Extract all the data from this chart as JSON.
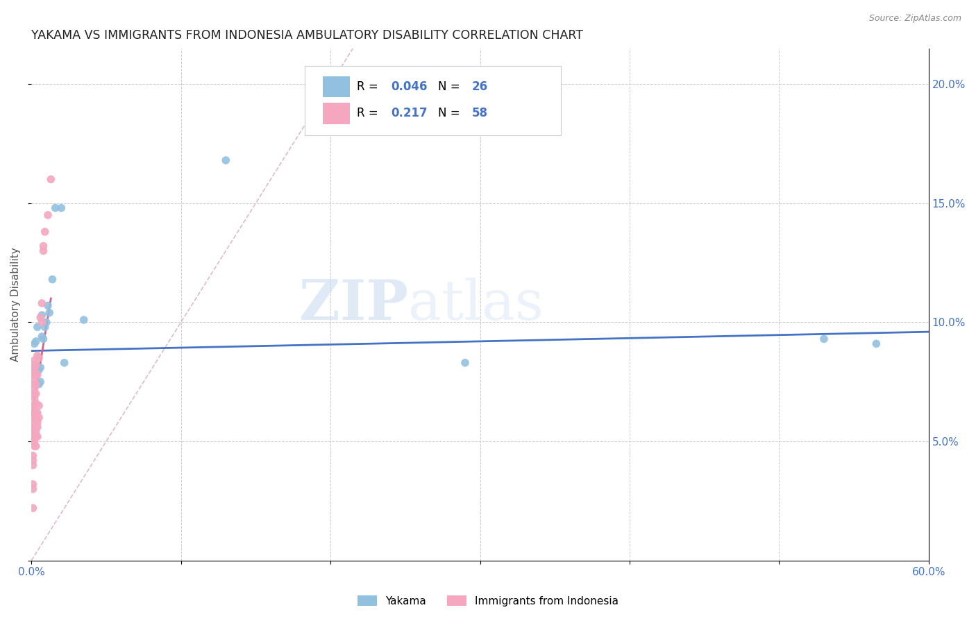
{
  "title": "YAKAMA VS IMMIGRANTS FROM INDONESIA AMBULATORY DISABILITY CORRELATION CHART",
  "source": "Source: ZipAtlas.com",
  "ylabel": "Ambulatory Disability",
  "xlim": [
    0.0,
    0.6
  ],
  "ylim": [
    0.0,
    0.215
  ],
  "xtick_positions": [
    0.0,
    0.1,
    0.2,
    0.3,
    0.4,
    0.5,
    0.6
  ],
  "xticklabels": [
    "0.0%",
    "",
    "",
    "",
    "",
    "",
    "60.0%"
  ],
  "ytick_positions": [
    0.0,
    0.05,
    0.1,
    0.15,
    0.2
  ],
  "yticklabels": [
    "",
    "5.0%",
    "10.0%",
    "15.0%",
    "20.0%"
  ],
  "color_blue": "#92c0e0",
  "color_pink": "#f4a7be",
  "color_blue_line": "#4472c4",
  "color_pink_line": "#d9608a",
  "color_blue_text": "#4472c4",
  "watermark_text": "ZIPatlas",
  "background_color": "#ffffff",
  "grid_color": "#cccccc",
  "blue_scatter_x": [
    0.002,
    0.002,
    0.003,
    0.003,
    0.004,
    0.004,
    0.005,
    0.005,
    0.006,
    0.006,
    0.007,
    0.007,
    0.008,
    0.009,
    0.01,
    0.011,
    0.012,
    0.014,
    0.016,
    0.02,
    0.022,
    0.035,
    0.13,
    0.29,
    0.53,
    0.565
  ],
  "blue_scatter_y": [
    0.08,
    0.091,
    0.082,
    0.092,
    0.08,
    0.098,
    0.074,
    0.08,
    0.075,
    0.081,
    0.094,
    0.103,
    0.093,
    0.098,
    0.1,
    0.107,
    0.104,
    0.118,
    0.148,
    0.148,
    0.083,
    0.101,
    0.168,
    0.083,
    0.093,
    0.091
  ],
  "pink_scatter_x": [
    0.001,
    0.001,
    0.001,
    0.001,
    0.001,
    0.001,
    0.001,
    0.001,
    0.001,
    0.001,
    0.001,
    0.001,
    0.002,
    0.002,
    0.002,
    0.002,
    0.002,
    0.002,
    0.002,
    0.002,
    0.002,
    0.002,
    0.002,
    0.002,
    0.002,
    0.002,
    0.002,
    0.002,
    0.002,
    0.002,
    0.003,
    0.003,
    0.003,
    0.003,
    0.003,
    0.003,
    0.003,
    0.003,
    0.003,
    0.003,
    0.003,
    0.004,
    0.004,
    0.004,
    0.004,
    0.004,
    0.004,
    0.005,
    0.005,
    0.005,
    0.006,
    0.007,
    0.007,
    0.008,
    0.008,
    0.009,
    0.011,
    0.013
  ],
  "pink_scatter_y": [
    0.022,
    0.03,
    0.032,
    0.04,
    0.042,
    0.044,
    0.05,
    0.052,
    0.054,
    0.055,
    0.06,
    0.065,
    0.048,
    0.05,
    0.052,
    0.054,
    0.056,
    0.058,
    0.06,
    0.062,
    0.065,
    0.068,
    0.07,
    0.072,
    0.074,
    0.076,
    0.078,
    0.08,
    0.082,
    0.084,
    0.048,
    0.052,
    0.054,
    0.056,
    0.06,
    0.062,
    0.066,
    0.07,
    0.074,
    0.078,
    0.082,
    0.052,
    0.056,
    0.058,
    0.062,
    0.078,
    0.086,
    0.06,
    0.065,
    0.085,
    0.102,
    0.1,
    0.108,
    0.13,
    0.132,
    0.138,
    0.145,
    0.16
  ],
  "blue_line_x": [
    0.0,
    0.6
  ],
  "blue_line_y": [
    0.088,
    0.096
  ],
  "pink_line_x": [
    0.0,
    0.013
  ],
  "pink_line_y": [
    0.06,
    0.11
  ],
  "diagonal_line_x": [
    0.0,
    0.215
  ],
  "diagonal_line_y": [
    0.0,
    0.215
  ]
}
